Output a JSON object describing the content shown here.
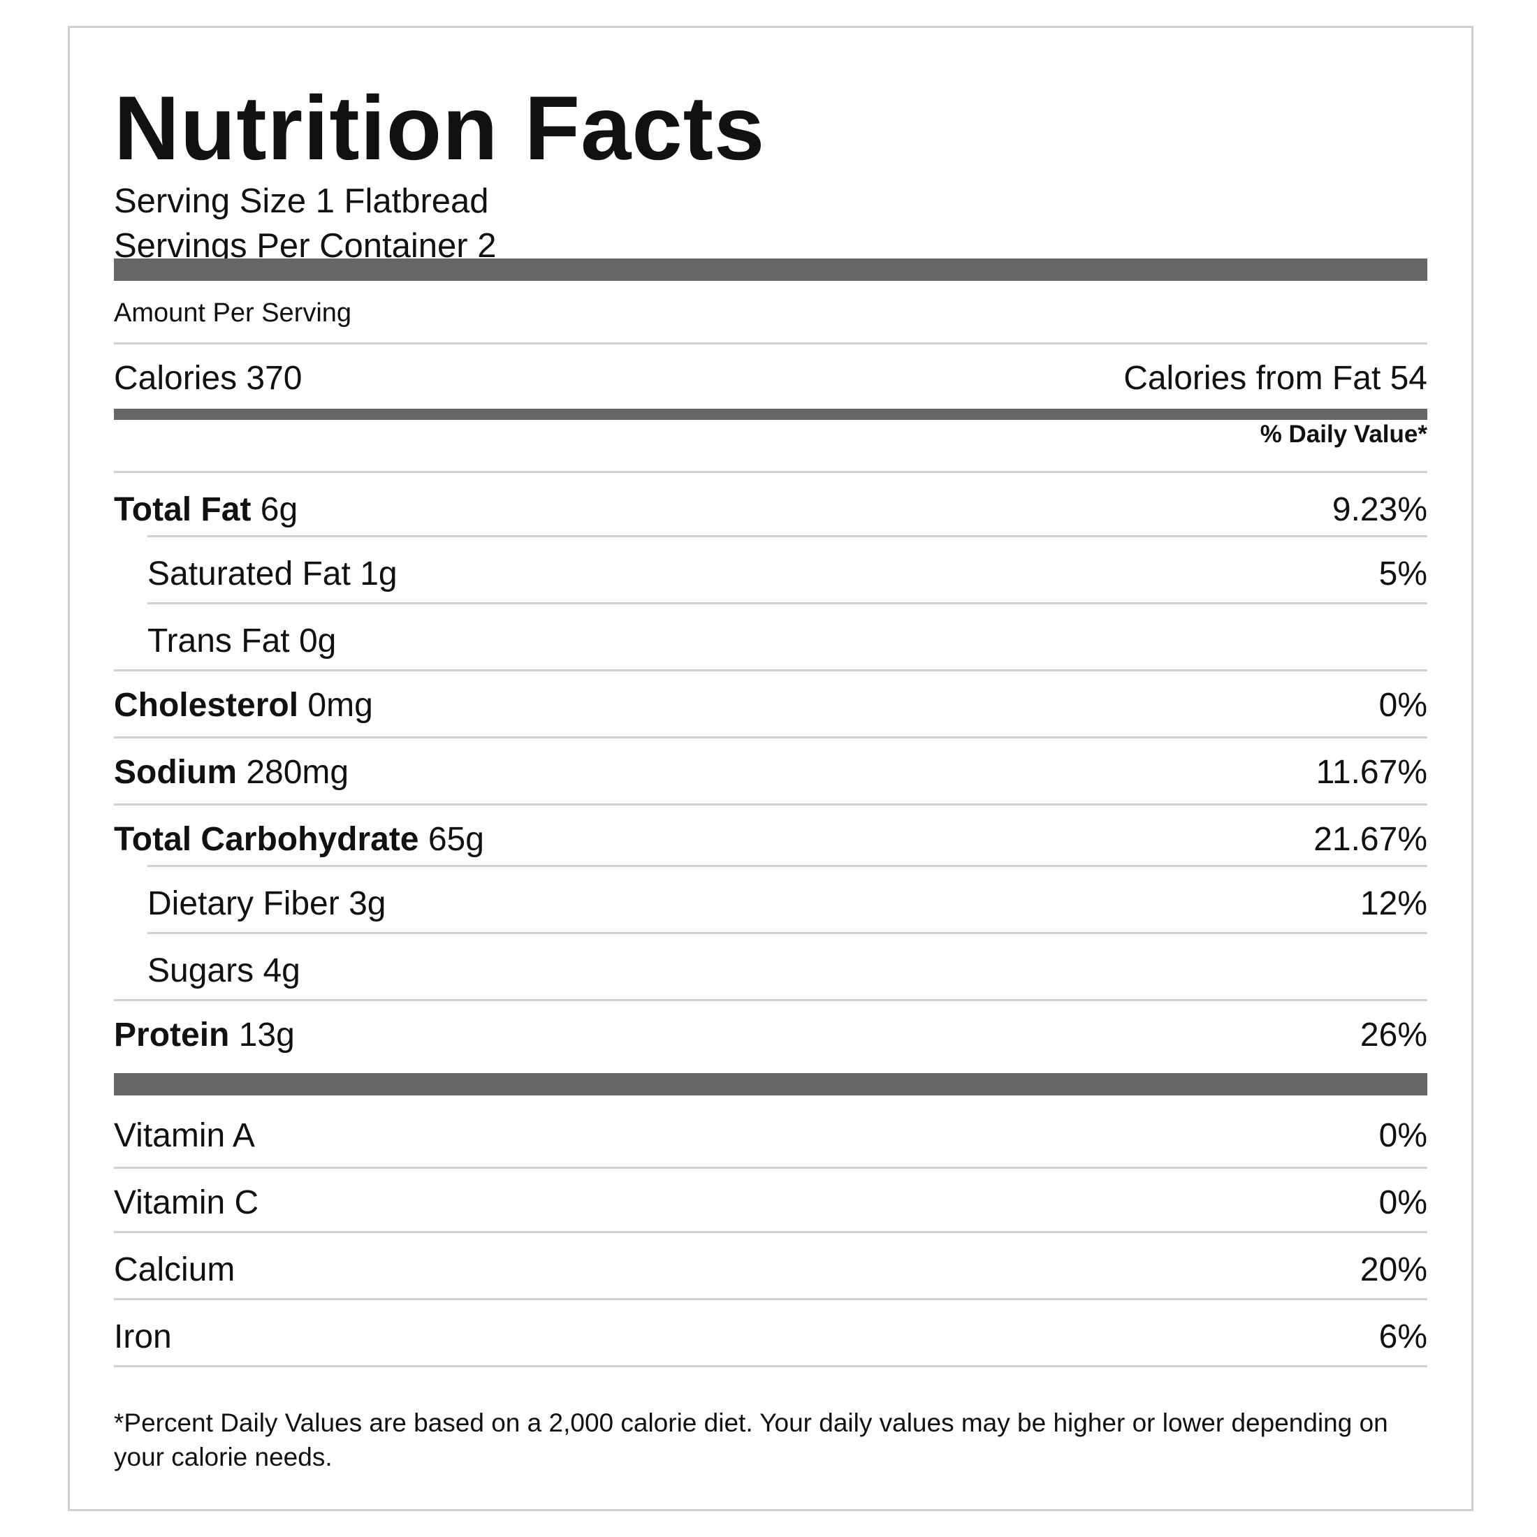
{
  "title": "Nutrition Facts",
  "serving_size": "Serving Size 1 Flatbread",
  "servings_per_container": "Servings Per Container 2",
  "amount_per_serving": "Amount Per Serving",
  "calories": "Calories 370",
  "calories_from_fat": "Calories from Fat 54",
  "daily_value_header": "% Daily Value*",
  "nutrients": [
    {
      "name": "Total Fat",
      "amount": "6g",
      "dv": "9.23%"
    },
    {
      "name": "Saturated Fat",
      "amount": "1g",
      "dv": "5%"
    },
    {
      "name": "Trans Fat",
      "amount": "0g",
      "dv": ""
    },
    {
      "name": "Cholesterol",
      "amount": "0mg",
      "dv": "0%"
    },
    {
      "name": "Sodium",
      "amount": "280mg",
      "dv": "11.67%"
    },
    {
      "name": "Total Carbohydrate",
      "amount": "65g",
      "dv": "21.67%"
    },
    {
      "name": "Dietary Fiber",
      "amount": "3g",
      "dv": "12%"
    },
    {
      "name": "Sugars",
      "amount": "4g",
      "dv": ""
    },
    {
      "name": "Protein",
      "amount": "13g",
      "dv": "26%"
    }
  ],
  "vitamins": [
    {
      "name": "Vitamin A",
      "dv": "0%"
    },
    {
      "name": "Vitamin C",
      "dv": "0%"
    },
    {
      "name": "Calcium",
      "dv": "20%"
    },
    {
      "name": "Iron",
      "dv": "6%"
    }
  ],
  "footnote": "*Percent Daily Values are based on a 2,000 calorie diet. Your daily values may be higher or lower depending on your calorie needs."
}
